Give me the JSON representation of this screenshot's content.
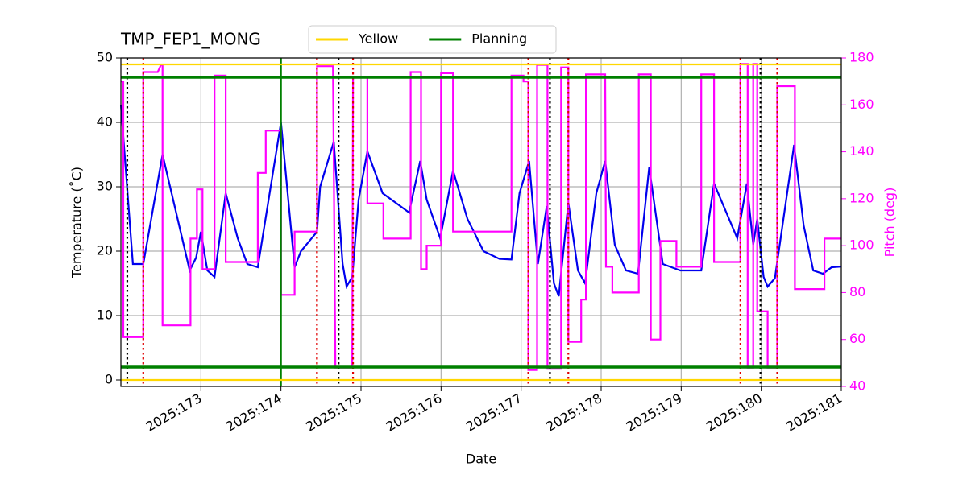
{
  "chart_data": {
    "type": "line",
    "title": "TMP_FEP1_MONG",
    "xlabel": "Date",
    "ylabel": "Temperature (˚C)",
    "y2label": "Pitch (deg)",
    "y2color": "#ff00ff",
    "grid": true,
    "xlim": [
      172.0,
      181.0
    ],
    "xticks": [
      {
        "value": 173,
        "label": "2025:173"
      },
      {
        "value": 174,
        "label": "2025:174"
      },
      {
        "value": 175,
        "label": "2025:175"
      },
      {
        "value": 176,
        "label": "2025:176"
      },
      {
        "value": 177,
        "label": "2025:177"
      },
      {
        "value": 178,
        "label": "2025:178"
      },
      {
        "value": 179,
        "label": "2025:179"
      },
      {
        "value": 180,
        "label": "2025:180"
      },
      {
        "value": 181,
        "label": "2025:181"
      }
    ],
    "ylim": [
      -1,
      50
    ],
    "yticks": [
      0,
      10,
      20,
      30,
      40,
      50
    ],
    "y2lim": [
      40,
      180
    ],
    "y2ticks": [
      40,
      60,
      80,
      100,
      120,
      140,
      160,
      180
    ],
    "limit_lines": [
      {
        "name": "Yellow",
        "color": "#ffd700",
        "values": [
          0,
          49
        ]
      },
      {
        "name": "Planning",
        "color": "#008000",
        "values": [
          2,
          47
        ]
      }
    ],
    "vertical_lines": [
      {
        "x": 172.08,
        "color": "#000000",
        "dash": "dotted"
      },
      {
        "x": 172.28,
        "color": "#e00000",
        "dash": "dotted"
      },
      {
        "x": 174.0,
        "color": "#008000",
        "dash": "solid"
      },
      {
        "x": 174.45,
        "color": "#e00000",
        "dash": "dotted"
      },
      {
        "x": 174.72,
        "color": "#000000",
        "dash": "dotted"
      },
      {
        "x": 174.9,
        "color": "#e00000",
        "dash": "dotted"
      },
      {
        "x": 177.09,
        "color": "#e00000",
        "dash": "dotted"
      },
      {
        "x": 177.36,
        "color": "#000000",
        "dash": "dotted"
      },
      {
        "x": 177.59,
        "color": "#e00000",
        "dash": "dotted"
      },
      {
        "x": 179.74,
        "color": "#e00000",
        "dash": "dotted"
      },
      {
        "x": 179.99,
        "color": "#000000",
        "dash": "dotted"
      },
      {
        "x": 180.2,
        "color": "#e00000",
        "dash": "dotted"
      }
    ],
    "series": [
      {
        "color": "#0000ee",
        "axis": "y",
        "x": [
          172.0,
          172.15,
          172.28,
          172.52,
          172.86,
          172.94,
          173.0,
          173.08,
          173.17,
          173.31,
          173.46,
          173.58,
          173.71,
          174.0,
          174.17,
          174.25,
          174.45,
          174.49,
          174.66,
          174.77,
          174.82,
          174.89,
          174.97,
          175.08,
          175.27,
          175.6,
          175.74,
          175.82,
          175.99,
          176.15,
          176.33,
          176.53,
          176.73,
          176.88,
          176.98,
          177.1,
          177.21,
          177.32,
          177.41,
          177.47,
          177.59,
          177.71,
          177.8,
          177.94,
          178.05,
          178.17,
          178.31,
          178.46,
          178.6,
          178.77,
          178.99,
          179.25,
          179.41,
          179.7,
          179.82,
          179.9,
          179.95,
          180.03,
          180.08,
          180.17,
          180.41,
          180.53,
          180.65,
          180.77,
          180.88,
          181.0
        ],
        "values": [
          42.75,
          18,
          18,
          35,
          17,
          19,
          23,
          17,
          16,
          29,
          22,
          18,
          17.5,
          40,
          17.5,
          20,
          23,
          30,
          37,
          18,
          14.5,
          16,
          28,
          35.5,
          29,
          26,
          34,
          28,
          22,
          32.5,
          25,
          20,
          18.8,
          18.7,
          29,
          34,
          18,
          27,
          15,
          13,
          27.5,
          17,
          15,
          29,
          34,
          21,
          17,
          16.5,
          33,
          18,
          17,
          17,
          30.5,
          22,
          30.5,
          21,
          25,
          16,
          14.5,
          15.8,
          36.5,
          24,
          17,
          16.5,
          17.5,
          17.6
        ]
      },
      {
        "color": "#ff00ff",
        "axis": "y2",
        "x": [
          172.0,
          172.03,
          172.03,
          172.28,
          172.28,
          172.46,
          172.5,
          172.52,
          172.52,
          172.87,
          172.87,
          172.95,
          172.95,
          173.02,
          173.02,
          173.17,
          173.17,
          173.31,
          173.31,
          173.71,
          173.71,
          173.81,
          173.81,
          174.0,
          174.0,
          174.17,
          174.17,
          174.45,
          174.45,
          174.65,
          174.68,
          174.89,
          174.9,
          175.08,
          175.08,
          175.28,
          175.28,
          175.62,
          175.62,
          175.75,
          175.75,
          175.82,
          175.82,
          176.0,
          176.0,
          176.15,
          176.15,
          176.88,
          176.88,
          177.03,
          177.03,
          177.09,
          177.09,
          177.2,
          177.2,
          177.33,
          177.33,
          177.5,
          177.5,
          177.59,
          177.59,
          177.75,
          177.75,
          177.81,
          177.81,
          178.05,
          178.06,
          178.14,
          178.14,
          178.47,
          178.47,
          178.62,
          178.62,
          178.74,
          178.74,
          178.94,
          178.94,
          179.25,
          179.25,
          179.41,
          179.41,
          179.74,
          179.74,
          179.83,
          179.83,
          179.9,
          179.9,
          179.95,
          179.95,
          180.08,
          180.08,
          180.2,
          180.2,
          180.42,
          180.42,
          180.79,
          180.79,
          181.0
        ],
        "values": [
          170,
          170,
          61,
          61,
          174,
          174,
          177,
          177,
          66,
          66,
          103,
          103,
          124,
          124,
          90,
          90,
          172.5,
          172.5,
          93,
          93,
          131,
          131,
          149,
          149,
          79,
          79,
          106,
          106,
          176.5,
          176.5,
          48,
          48,
          172,
          172,
          118,
          118,
          103,
          103,
          174,
          174,
          90,
          90,
          100,
          100,
          173.5,
          173.5,
          106,
          106,
          172.5,
          172.5,
          170,
          170,
          47,
          47,
          177,
          177,
          47.5,
          47.5,
          176,
          176,
          59,
          59,
          77,
          77,
          173,
          173,
          91,
          91,
          80,
          80,
          173,
          173,
          60,
          60,
          102,
          102,
          91,
          91,
          173,
          173,
          93,
          93,
          177.5,
          177.5,
          48,
          48,
          177.5,
          177.5,
          72,
          72,
          48,
          48,
          168,
          168,
          81.5,
          81.5,
          103,
          103
        ]
      }
    ]
  }
}
